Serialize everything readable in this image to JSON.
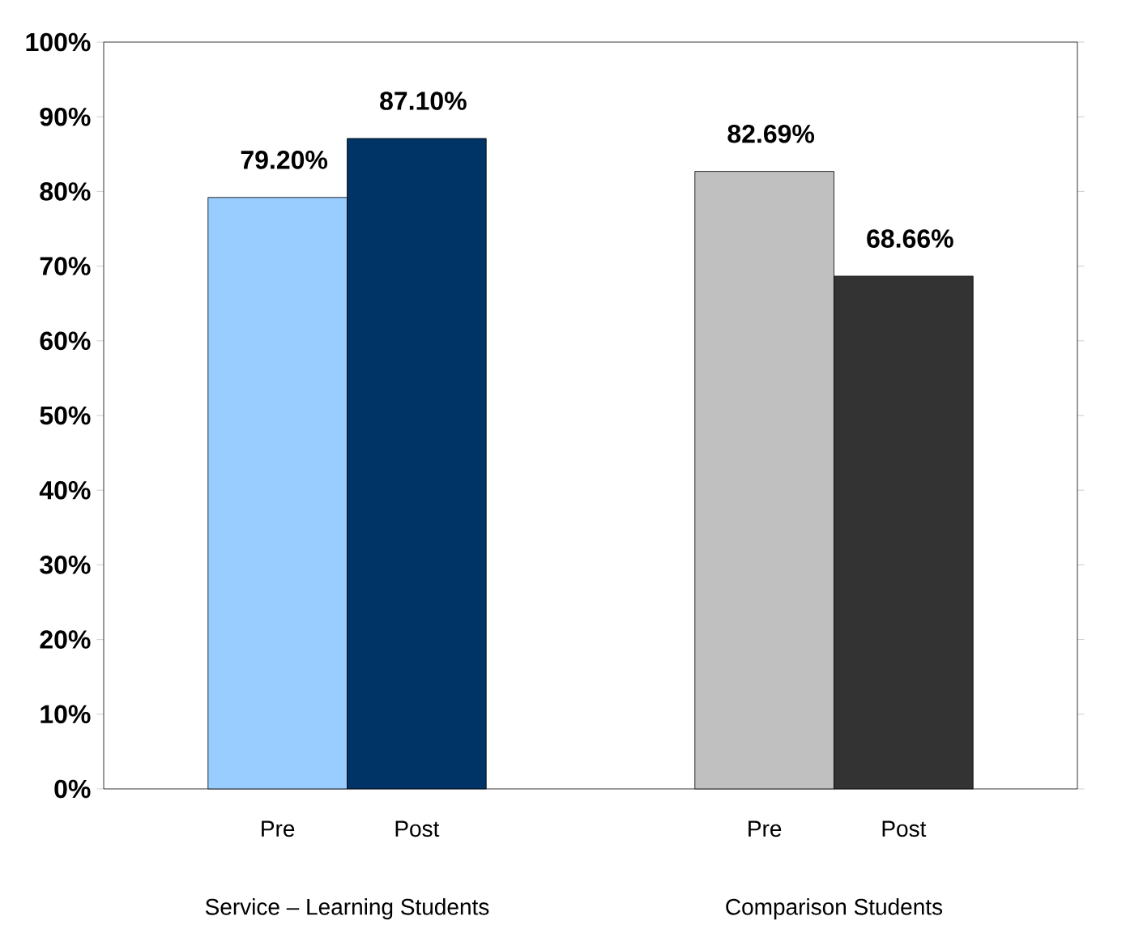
{
  "chart_data": {
    "type": "bar",
    "categories": [
      "Pre",
      "Post",
      "Pre",
      "Post"
    ],
    "values": [
      79.2,
      87.1,
      82.69,
      68.66
    ],
    "colors": [
      "#99ccff",
      "#003366",
      "#c0c0c0",
      "#333333"
    ],
    "value_labels": [
      "79.20%",
      "87.10%",
      "82.69%",
      "68.66%"
    ],
    "ylim": [
      0,
      100
    ],
    "yticks": [
      {
        "value": 0,
        "label": "0%"
      },
      {
        "value": 10,
        "label": "10%"
      },
      {
        "value": 20,
        "label": "20%"
      },
      {
        "value": 30,
        "label": "30%"
      },
      {
        "value": 40,
        "label": "40%"
      },
      {
        "value": 50,
        "label": "50%"
      },
      {
        "value": 60,
        "label": "60%"
      },
      {
        "value": 70,
        "label": "70%"
      },
      {
        "value": 80,
        "label": "80%"
      },
      {
        "value": 90,
        "label": "90%"
      },
      {
        "value": 100,
        "label": "100%"
      }
    ],
    "annotations": [
      "Service – Learning Students",
      "Comparison Students"
    ],
    "grid": false
  }
}
